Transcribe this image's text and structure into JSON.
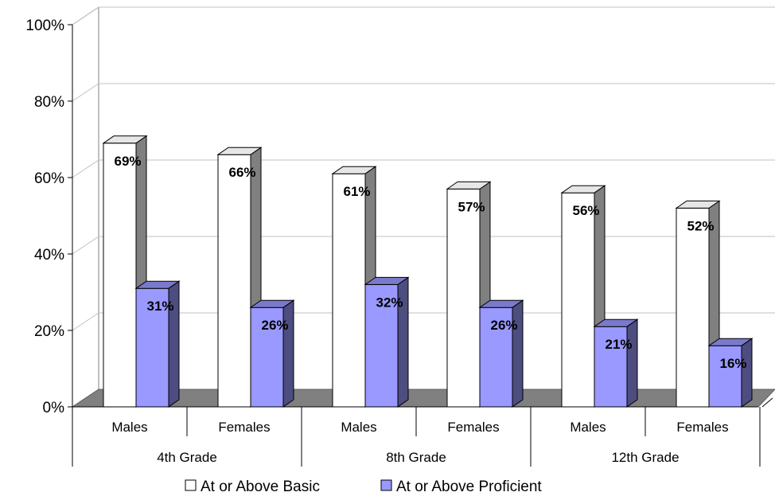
{
  "chart_data": {
    "type": "bar",
    "groups": [
      {
        "label": "4th Grade",
        "categories": [
          "Males",
          "Females"
        ]
      },
      {
        "label": "8th Grade",
        "categories": [
          "Males",
          "Females"
        ]
      },
      {
        "label": "12th Grade",
        "categories": [
          "Males",
          "Females"
        ]
      }
    ],
    "series": [
      {
        "name": "At or Above Basic",
        "values": [
          69,
          66,
          61,
          57,
          56,
          52
        ],
        "labels": [
          "69%",
          "66%",
          "61%",
          "57%",
          "56%",
          "52%"
        ],
        "color": "#FFFFFF",
        "side_color": "#808080"
      },
      {
        "name": "At or Above Proficient",
        "values": [
          31,
          26,
          32,
          26,
          21,
          16
        ],
        "labels": [
          "31%",
          "26%",
          "32%",
          "26%",
          "21%",
          "16%"
        ],
        "color": "#9999FF",
        "side_color": "#4D4D80"
      }
    ],
    "yticks": [
      "0%",
      "20%",
      "40%",
      "60%",
      "80%",
      "100%"
    ],
    "ylim": [
      0,
      100
    ],
    "legend_position": "bottom",
    "grid": true,
    "floor_color": "#808080"
  }
}
